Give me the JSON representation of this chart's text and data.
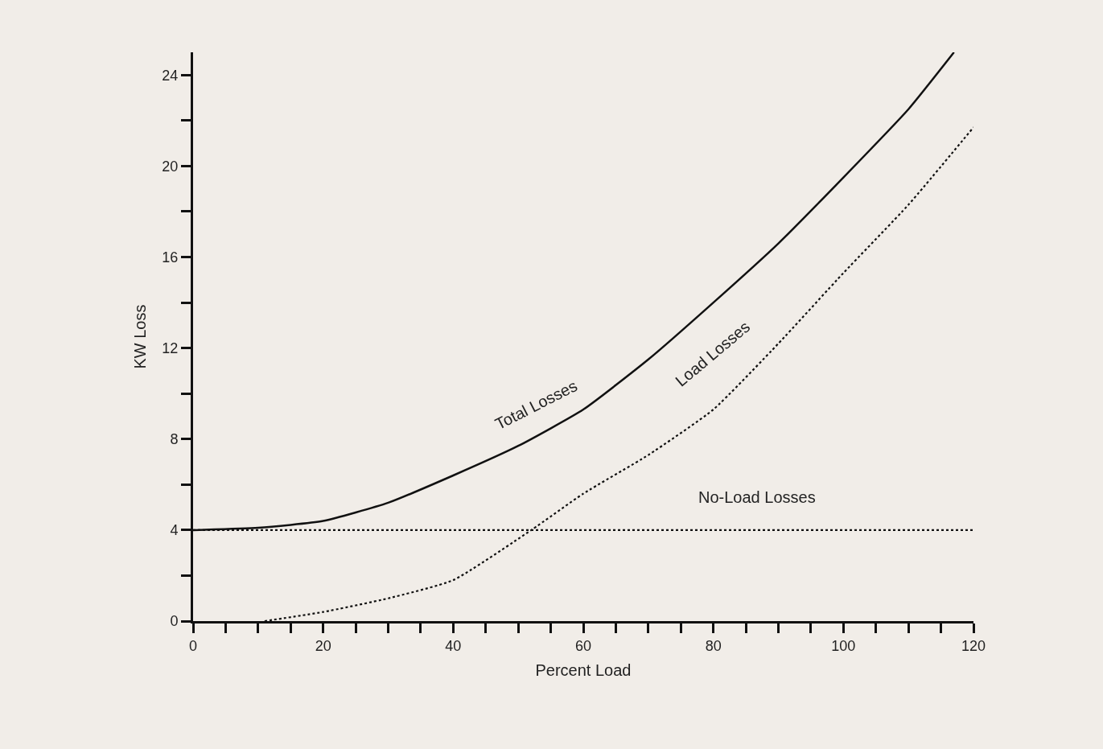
{
  "chart_data": {
    "type": "line",
    "xlabel": "Percent Load",
    "ylabel": "KW Loss",
    "xlim": [
      0,
      120
    ],
    "ylim": [
      0,
      25
    ],
    "xticks": [
      0,
      {
        "value": 5,
        "label": null
      },
      {
        "value": 10,
        "label": null
      },
      {
        "value": 15,
        "label": null
      },
      20,
      {
        "value": 25,
        "label": null
      },
      {
        "value": 30,
        "label": null
      },
      {
        "value": 35,
        "label": null
      },
      40,
      {
        "value": 45,
        "label": null
      },
      {
        "value": 50,
        "label": null
      },
      {
        "value": 55,
        "label": null
      },
      60,
      {
        "value": 65,
        "label": null
      },
      {
        "value": 70,
        "label": null
      },
      {
        "value": 75,
        "label": null
      },
      80,
      {
        "value": 85,
        "label": null
      },
      {
        "value": 90,
        "label": null
      },
      {
        "value": 95,
        "label": null
      },
      100,
      {
        "value": 105,
        "label": null
      },
      {
        "value": 110,
        "label": null
      },
      {
        "value": 115,
        "label": null
      },
      120
    ],
    "yticks": [
      0,
      {
        "value": 2,
        "label": null
      },
      4,
      {
        "value": 6,
        "label": null
      },
      8,
      {
        "value": 10,
        "label": null
      },
      12,
      {
        "value": 14,
        "label": null
      },
      16,
      {
        "value": 18,
        "label": null
      },
      20,
      {
        "value": 22,
        "label": null
      },
      24
    ],
    "grid": false,
    "marker": "none",
    "series": [
      {
        "color": "#111111",
        "line_style": "solid",
        "x": [
          0,
          10,
          20,
          30,
          40,
          50,
          60,
          70,
          80,
          90,
          100,
          110,
          117
        ],
        "values": [
          4,
          4.1,
          4.4,
          5.2,
          6.4,
          7.7,
          9.3,
          11.5,
          14,
          16.6,
          19.5,
          22.5,
          25
        ]
      },
      {
        "color": "#111111",
        "line_style": "dotted",
        "x": [
          11,
          20,
          30,
          40,
          52,
          60,
          70,
          80,
          90,
          100,
          110,
          120
        ],
        "values": [
          0,
          0.4,
          1,
          1.8,
          4,
          5.6,
          7.3,
          9.3,
          12.2,
          15.3,
          18.3,
          21.7
        ]
      },
      {
        "color": "#111111",
        "line_style": "dotted",
        "x": [
          0,
          120
        ],
        "values": [
          4,
          4
        ]
      }
    ],
    "annotations": [
      "Total Losses",
      "Load Losses",
      "No-Load Losses"
    ]
  }
}
